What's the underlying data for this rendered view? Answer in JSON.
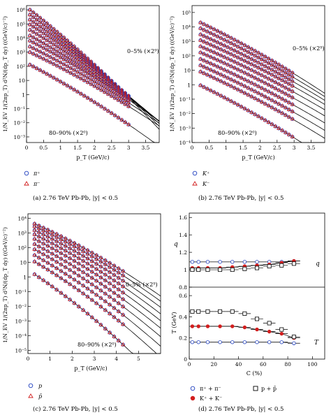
{
  "colors": {
    "pos": "#1f3fbf",
    "neg": "#d21e1e",
    "black": "#000000"
  },
  "panels": [
    {
      "id": "a",
      "caption": "(a)  2.76 TeV Pb-Pb, |y| < 0.5",
      "ylabel": "1/N_EV 1/(2πp_T) d²N/(dp_T dy) ((GeV/c)⁻²)",
      "xlabel": "p_T (GeV/c)",
      "top_label": "0–5% (×2⁹)",
      "bottom_label": "80–90% (×2⁰)",
      "legend": [
        "π⁺",
        "π⁻"
      ],
      "xticks": [
        "0",
        "0.5",
        "1",
        "1.5",
        "2",
        "2.5",
        "3",
        "3.5"
      ],
      "yticks": [
        "10⁶",
        "10⁵",
        "10⁴",
        "10³",
        "10²",
        "10",
        "1",
        "10⁻¹",
        "10⁻²",
        "10⁻³"
      ]
    },
    {
      "id": "b",
      "caption": "(b)  2.76 TeV Pb-Pb, |y| < 0.5",
      "ylabel": "1/N_EV 1/(2πp_T) d²N/(dp_T dy) ((GeV/c)⁻²)",
      "xlabel": "p_T (GeV/c)",
      "top_label": "0–5% (×2⁹)",
      "bottom_label": "80–90% (×2⁰)",
      "legend": [
        "K⁺",
        "K⁻"
      ],
      "xticks": [
        "0",
        "0.5",
        "1",
        "1.5",
        "2",
        "2.5",
        "3",
        "3.5"
      ],
      "yticks": [
        "10⁵",
        "10⁴",
        "10³",
        "10²",
        "10",
        "1",
        "10⁻¹",
        "10⁻²",
        "10⁻³",
        "10⁻⁴"
      ]
    },
    {
      "id": "c",
      "caption": "(c)  2.76 TeV Pb-Pb, |y| < 0.5",
      "ylabel": "1/N_EV 1/(2πp_T) d²N/(dp_T dy) ((GeV/c)⁻²)",
      "xlabel": "p_T (GeV/c)",
      "top_label": "0–5% (×2⁹)",
      "bottom_label": "80–90% (×2⁰)",
      "legend": [
        "p",
        "p̄"
      ],
      "xticks": [
        "0",
        "1",
        "2",
        "3",
        "4",
        "5"
      ],
      "yticks": [
        "10⁴",
        "10³",
        "10²",
        "10",
        "1",
        "10⁻¹",
        "10⁻²",
        "10⁻³",
        "10⁻⁴",
        "10⁻⁵"
      ]
    },
    {
      "id": "d",
      "caption": "(d)  2.76 TeV Pb-Pb, |y| < 0.5",
      "xlabel": "C (%)",
      "top_ylabel": "q",
      "bottom_ylabel": "T (GeV)",
      "q_label": "q",
      "t_label": "T",
      "xticks": [
        "0",
        "20",
        "40",
        "60",
        "80",
        "100"
      ],
      "top_yticks": [
        "0.8",
        "1",
        "1.2",
        "1.4",
        "1.6"
      ],
      "bottom_yticks": [
        "0",
        "0.2",
        "0.4",
        "0.6"
      ],
      "legend": [
        "π⁺ + π⁻",
        "K⁺ + K⁻",
        "p + p̄"
      ]
    }
  ],
  "chart_data": [
    {
      "panel": "a",
      "type": "scatter",
      "log_y": true,
      "title": "",
      "xlabel": "p_T (GeV/c)",
      "ylabel": "1/N_EV 1/(2πp_T) d²N/(dp_T dy) ((GeV/c)⁻²)",
      "xlim": [
        0,
        3.9
      ],
      "ylim": [
        0.0004,
        2000000
      ],
      "x": [
        0.1,
        0.2,
        0.3,
        0.4,
        0.5,
        0.6,
        0.7,
        0.8,
        0.9,
        1.0,
        1.1,
        1.2,
        1.3,
        1.4,
        1.5,
        1.6,
        1.7,
        1.8,
        1.9,
        2.0,
        2.1,
        2.2,
        2.3,
        2.4,
        2.5,
        2.6,
        2.7,
        2.8,
        2.9,
        3.0
      ],
      "fit_xmax": 3.9,
      "centrality_scale": "(×2⁰) … (×2⁹)",
      "series": [
        {
          "y0": 1000000,
          "slope": 4.31,
          "pts_to": 3.0
        },
        {
          "y0": 450000,
          "slope": 4.02,
          "pts_to": 3.0
        },
        {
          "y0": 200000,
          "slope": 3.75,
          "pts_to": 3.0
        },
        {
          "y0": 90000,
          "slope": 3.5,
          "pts_to": 3.0
        },
        {
          "y0": 38000,
          "slope": 3.29,
          "pts_to": 3.0
        },
        {
          "y0": 15000,
          "slope": 3.08,
          "pts_to": 3.0
        },
        {
          "y0": 6500,
          "slope": 2.9,
          "pts_to": 3.0
        },
        {
          "y0": 2500,
          "slope": 2.76,
          "pts_to": 3.0
        },
        {
          "y0": 1000,
          "slope": 2.66,
          "pts_to": 3.0
        },
        {
          "y0": 130,
          "slope": 2.94,
          "pts_to": 3.0
        }
      ]
    },
    {
      "panel": "b",
      "type": "scatter",
      "log_y": true,
      "title": "",
      "xlabel": "p_T (GeV/c)",
      "ylabel": "1/N_EV 1/(2πp_T) d²N/(dp_T dy) ((GeV/c)⁻²)",
      "xlim": [
        0,
        3.9
      ],
      "ylim": [
        0.0001,
        300000
      ],
      "x": [
        0.25,
        0.35,
        0.45,
        0.55,
        0.65,
        0.75,
        0.85,
        0.95,
        1.05,
        1.15,
        1.25,
        1.35,
        1.45,
        1.55,
        1.65,
        1.75,
        1.85,
        1.95,
        2.05,
        2.15,
        2.25,
        2.35,
        2.45,
        2.55,
        2.65,
        2.75,
        2.85,
        2.95
      ],
      "fit_xmax": 3.9,
      "series": [
        {
          "y0": 20000,
          "slope": 2.61,
          "pts_to": 3.0
        },
        {
          "y0": 8000,
          "slope": 2.52,
          "pts_to": 3.0
        },
        {
          "y0": 3000,
          "slope": 2.43,
          "pts_to": 3.0
        },
        {
          "y0": 1200,
          "slope": 2.37,
          "pts_to": 3.0
        },
        {
          "y0": 450,
          "slope": 2.34,
          "pts_to": 3.0
        },
        {
          "y0": 170,
          "slope": 2.34,
          "pts_to": 3.0
        },
        {
          "y0": 60,
          "slope": 2.36,
          "pts_to": 3.0
        },
        {
          "y0": 22,
          "slope": 2.4,
          "pts_to": 3.0
        },
        {
          "y0": 8,
          "slope": 2.46,
          "pts_to": 3.0
        },
        {
          "y0": 0.9,
          "slope": 2.67,
          "pts_to": 3.0
        }
      ]
    },
    {
      "panel": "c",
      "type": "scatter",
      "log_y": true,
      "title": "",
      "xlabel": "p_T (GeV/c)",
      "ylabel": "1/N_EV 1/(2πp_T) d²N/(dp_T dy) ((GeV/c)⁻²)",
      "xlim": [
        0,
        6
      ],
      "ylim": [
        6e-06,
        20000
      ],
      "x": [
        0.3,
        0.5,
        0.7,
        0.9,
        1.1,
        1.3,
        1.5,
        1.7,
        1.9,
        2.1,
        2.3,
        2.5,
        2.7,
        2.9,
        3.1,
        3.3,
        3.5,
        3.7,
        3.9,
        4.1,
        4.3
      ],
      "fit_xmax": 6.0,
      "series": [
        {
          "y0": 4200,
          "slope": 1.55,
          "pts_to": 4.4
        },
        {
          "y0": 2700,
          "slope": 1.6,
          "pts_to": 4.4
        },
        {
          "y0": 1500,
          "slope": 1.65,
          "pts_to": 4.4
        },
        {
          "y0": 780,
          "slope": 1.7,
          "pts_to": 4.4
        },
        {
          "y0": 380,
          "slope": 1.75,
          "pts_to": 4.4
        },
        {
          "y0": 170,
          "slope": 1.8,
          "pts_to": 4.4
        },
        {
          "y0": 75,
          "slope": 1.87,
          "pts_to": 4.4
        },
        {
          "y0": 30,
          "slope": 1.95,
          "pts_to": 4.4
        },
        {
          "y0": 11,
          "slope": 2.05,
          "pts_to": 4.4
        },
        {
          "y0": 1.5,
          "slope": 2.3,
          "pts_to": 4.4
        }
      ]
    },
    {
      "panel": "d",
      "type": "scatter",
      "title": "",
      "xlabel": "C (%)",
      "x": [
        2.5,
        7.5,
        15,
        25,
        35,
        45,
        55,
        65,
        75,
        85
      ],
      "xerr": [
        2.5,
        2.5,
        5,
        5,
        5,
        5,
        5,
        5,
        5,
        5
      ],
      "q": {
        "ylim": [
          0.8,
          1.65
        ],
        "series": [
          {
            "name": "π⁺ + π⁻",
            "values": [
              1.09,
              1.09,
              1.09,
              1.09,
              1.09,
              1.09,
              1.09,
              1.09,
              1.09,
              1.1
            ]
          },
          {
            "name": "K⁺ + K⁻",
            "values": [
              1.02,
              1.02,
              1.02,
              1.02,
              1.03,
              1.04,
              1.05,
              1.06,
              1.08,
              1.1
            ]
          },
          {
            "name": "p + p̄",
            "values": [
              1.0,
              1.0,
              1.0,
              1.0,
              1.0,
              1.01,
              1.02,
              1.04,
              1.05,
              1.07
            ]
          }
        ]
      },
      "T": {
        "ylim": [
          0,
          0.68
        ],
        "series": [
          {
            "name": "π⁺ + π⁻",
            "values": [
              0.16,
              0.16,
              0.16,
              0.16,
              0.16,
              0.16,
              0.16,
              0.16,
              0.16,
              0.15
            ]
          },
          {
            "name": "K⁺ + K⁻",
            "values": [
              0.31,
              0.31,
              0.31,
              0.31,
              0.31,
              0.3,
              0.28,
              0.26,
              0.24,
              0.2
            ]
          },
          {
            "name": "p + p̄",
            "values": [
              0.45,
              0.45,
              0.45,
              0.45,
              0.45,
              0.43,
              0.38,
              0.34,
              0.28,
              0.21
            ]
          }
        ]
      }
    }
  ]
}
